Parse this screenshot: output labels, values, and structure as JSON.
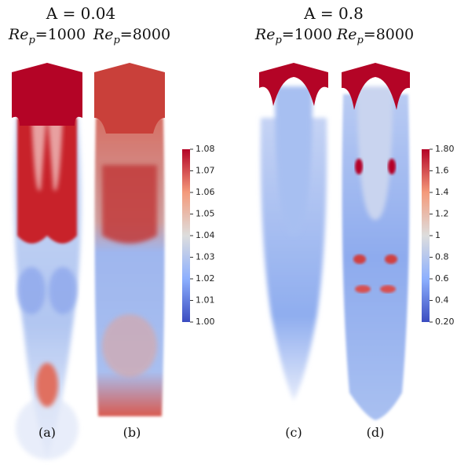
{
  "groups": [
    {
      "title": "A = 0.04",
      "columns": [
        {
          "re_symbol": "Re",
          "re_subscript": "p",
          "re_value": "=1000",
          "label": "(a)"
        },
        {
          "re_symbol": "Re",
          "re_subscript": "p",
          "re_value": "=8000",
          "label": "(b)"
        }
      ],
      "colorbar": {
        "lim": [
          1.0,
          1.08
        ],
        "ticks": [
          1.08,
          1.07,
          1.06,
          1.05,
          1.04,
          1.03,
          1.02,
          1.01,
          {
            "value": 1.0,
            "label": "1.00"
          }
        ]
      }
    },
    {
      "title": "A = 0.8",
      "columns": [
        {
          "re_symbol": "Re",
          "re_subscript": "p",
          "re_value": "=1000",
          "label": "(c)"
        },
        {
          "re_symbol": "Re",
          "re_subscript": "p",
          "re_value": "=8000",
          "label": "(d)"
        }
      ],
      "colorbar": {
        "lim": [
          0.2,
          1.8
        ],
        "ticks": [
          {
            "value": 1.8,
            "label": "1.80"
          },
          1.6,
          1.4,
          1.2,
          1,
          0.8,
          0.6,
          0.4,
          {
            "value": 0.2,
            "label": "0.20"
          }
        ]
      }
    }
  ]
}
